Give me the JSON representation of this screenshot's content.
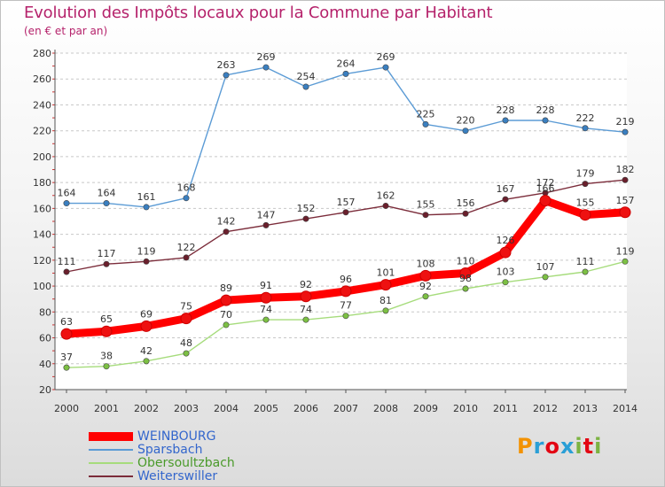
{
  "header": {
    "title": "Evolution des Impôts locaux pour la Commune par Habitant",
    "subtitle": "(en € et par an)"
  },
  "logo": {
    "text": "Proxiti",
    "colors": [
      "#f39200",
      "#2a9fd6",
      "#e30613",
      "#2a9fd6",
      "#7cb342",
      "#e30613",
      "#7cb342"
    ]
  },
  "chart_data": {
    "type": "line",
    "title": "Evolution des Impôts locaux pour la Commune par Habitant",
    "subtitle": "(en € et par an)",
    "xlabel": "",
    "ylabel": "",
    "x": [
      "2000",
      "2001",
      "2002",
      "2003",
      "2004",
      "2005",
      "2006",
      "2007",
      "2008",
      "2009",
      "2010",
      "2011",
      "2012",
      "2013",
      "2014"
    ],
    "ylim": [
      20,
      280
    ],
    "yticks": [
      20,
      40,
      60,
      80,
      100,
      120,
      140,
      160,
      180,
      200,
      220,
      240,
      260,
      280
    ],
    "grid": "horizontal dashed",
    "legend_position": "bottom-left",
    "series": [
      {
        "name": "WEINBOURG",
        "color": "#ff0000",
        "marker": "#ee1111",
        "values": [
          63,
          65,
          69,
          75,
          89,
          91,
          92,
          96,
          101,
          108,
          110,
          126,
          166,
          155,
          157
        ],
        "labels": [
          "63",
          "65",
          "69",
          "75",
          "89",
          "91",
          "92",
          "96",
          "101",
          "108",
          "110",
          "126",
          "166",
          "155",
          "157"
        ]
      },
      {
        "name": "Sparsbach",
        "color": "#5b9bd5",
        "marker": "#3a7fc0",
        "values": [
          164,
          164,
          161,
          168,
          263,
          269,
          254,
          264,
          269,
          225,
          220,
          228,
          228,
          222,
          219
        ],
        "labels": [
          "164",
          "164",
          "161",
          "168",
          "263",
          "269",
          "254",
          "264",
          "269",
          "225",
          "220",
          "228",
          "228",
          "222",
          "219"
        ]
      },
      {
        "name": "Obersoultzbach",
        "color": "#a6dc7c",
        "marker": "#7cc043",
        "values": [
          37,
          38,
          42,
          48,
          70,
          74,
          74,
          77,
          81,
          92,
          98,
          103,
          107,
          111,
          119
        ],
        "labels": [
          "37",
          "38",
          "42",
          "48",
          "70",
          "74",
          "74",
          "77",
          "81",
          "92",
          "98",
          "103",
          "107",
          "111",
          "119"
        ]
      },
      {
        "name": "Weiterswiller",
        "color": "#7b2c3a",
        "marker": "#6a1f2c",
        "values": [
          111,
          117,
          119,
          122,
          142,
          147,
          152,
          157,
          162,
          155,
          156,
          167,
          172,
          179,
          182
        ],
        "labels": [
          "111",
          "117",
          "119",
          "122",
          "142",
          "147",
          "152",
          "157",
          "162",
          "155",
          "156",
          "167",
          "172",
          "179",
          "182"
        ]
      }
    ]
  }
}
